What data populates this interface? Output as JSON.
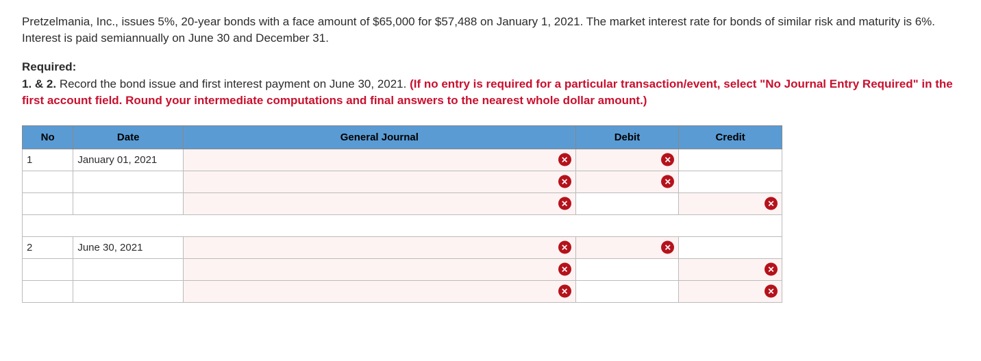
{
  "problem": {
    "text": "Pretzelmania, Inc., issues 5%, 20-year bonds with a face amount of $65,000 for $57,488 on January 1, 2021. The market interest rate for bonds of similar risk and maturity is 6%. Interest is paid semiannually on June 30 and December 31."
  },
  "required_label": "Required:",
  "instructions": {
    "lead_bold": "1. & 2.",
    "lead_normal": " Record the bond issue and first interest payment on June 30, 2021. ",
    "highlight": "(If no entry is required for a particular transaction/event, select \"No Journal Entry Required\" in the first account field. Round your intermediate computations and final answers to the nearest whole dollar amount.)"
  },
  "table": {
    "headers": {
      "no": "No",
      "date": "Date",
      "gj": "General Journal",
      "debit": "Debit",
      "credit": "Credit"
    },
    "rows": [
      {
        "no": "1",
        "date": "January 01, 2021",
        "gj_err": true,
        "debit_err": true,
        "credit_err": false,
        "debit_bg": "pink",
        "credit_bg": "white"
      },
      {
        "no": "",
        "date": "",
        "gj_err": true,
        "debit_err": true,
        "credit_err": false,
        "debit_bg": "pink",
        "credit_bg": "white"
      },
      {
        "no": "",
        "date": "",
        "gj_err": true,
        "debit_err": false,
        "credit_err": true,
        "debit_bg": "white",
        "credit_bg": "pink"
      },
      {
        "spacer": true
      },
      {
        "no": "2",
        "date": "June 30, 2021",
        "gj_err": true,
        "debit_err": true,
        "credit_err": false,
        "debit_bg": "pink",
        "credit_bg": "white"
      },
      {
        "no": "",
        "date": "",
        "gj_err": true,
        "debit_err": false,
        "credit_err": true,
        "debit_bg": "white",
        "credit_bg": "pink"
      },
      {
        "no": "",
        "date": "",
        "gj_err": true,
        "debit_err": false,
        "credit_err": true,
        "debit_bg": "white",
        "credit_bg": "pink"
      }
    ]
  },
  "colors": {
    "header_bg": "#5a9bd4",
    "error_bg": "#fdf3f3",
    "error_badge": "#b5121b",
    "highlight_text": "#c8102e"
  }
}
